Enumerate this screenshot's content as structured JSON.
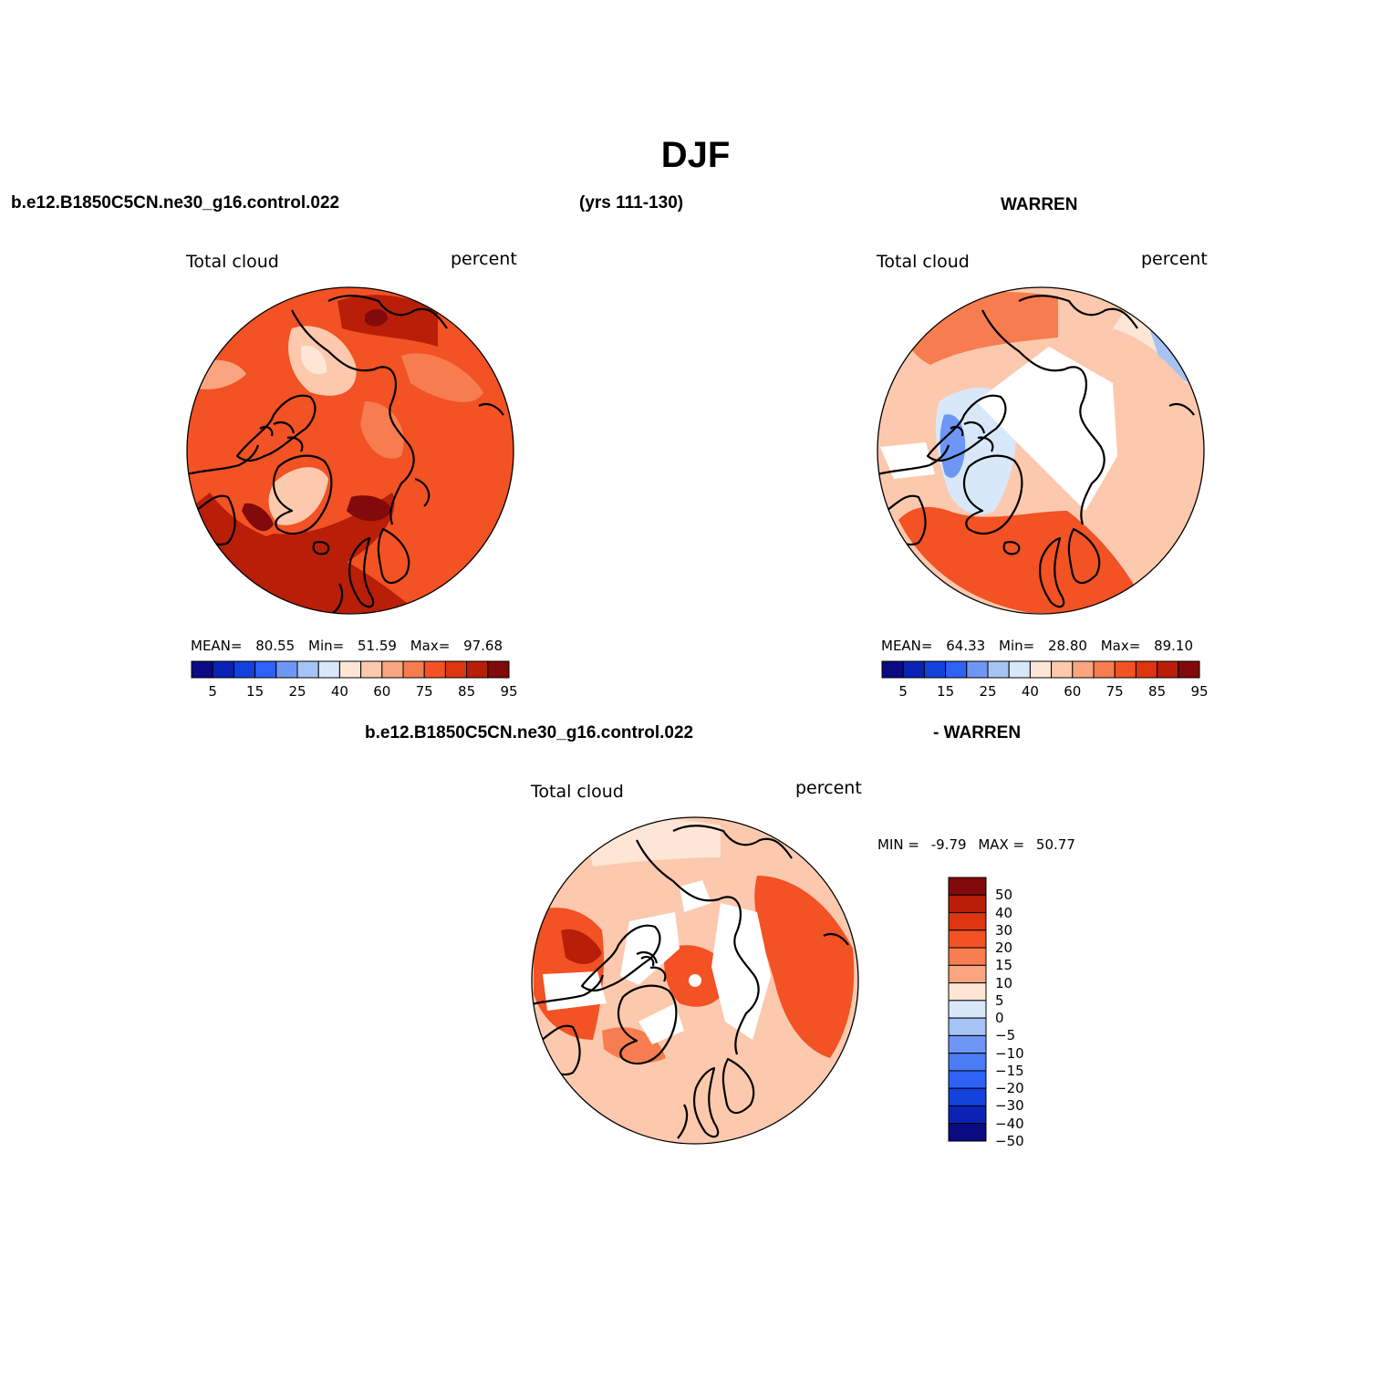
{
  "title": "DJF",
  "header": {
    "case_name": "b.e12.B1850C5CN.ne30_g16.control.022",
    "years": "(yrs 111-130)",
    "obs_name": "WARREN",
    "diff_case": "b.e12.B1850C5CN.ne30_g16.control.022",
    "diff_obs": "- WARREN"
  },
  "panels": [
    {
      "id": "model",
      "variable": "Total cloud",
      "units": "percent",
      "mean_label": "MEAN=",
      "mean": "80.55",
      "min_label": "Min=",
      "min": "51.59",
      "max_label": "Max=",
      "max": "97.68"
    },
    {
      "id": "obs",
      "variable": "Total cloud",
      "units": "percent",
      "mean_label": "MEAN=",
      "mean": "64.33",
      "min_label": "Min=",
      "min": "28.80",
      "max_label": "Max=",
      "max": "89.10"
    },
    {
      "id": "diff",
      "variable": "Total cloud",
      "units": "percent",
      "min_label": "MIN =",
      "min": "-9.79",
      "max_label": "MAX =",
      "max": "50.77"
    }
  ],
  "colorbar_abs": {
    "colors": [
      "#0a0a82",
      "#0a23b4",
      "#1440dc",
      "#2e62f5",
      "#6e97f5",
      "#a6c3f5",
      "#d8e8fa",
      "#fde6d6",
      "#fcc9ae",
      "#faa57f",
      "#f77d50",
      "#f25224",
      "#dc3510",
      "#b81e08",
      "#820a0a"
    ],
    "tick_labels": [
      "5",
      "15",
      "25",
      "40",
      "60",
      "75",
      "85",
      "95"
    ]
  },
  "colorbar_diff": {
    "colors": [
      "#820a0a",
      "#b81e08",
      "#dc3510",
      "#f25224",
      "#f77d50",
      "#faa57f",
      "#fde6d6",
      "#d8e8fa",
      "#a6c3f5",
      "#6e97f5",
      "#4b7bf5",
      "#2e62f5",
      "#1440dc",
      "#0a23b4",
      "#0a0a82"
    ],
    "tick_labels": [
      "50",
      "40",
      "30",
      "20",
      "15",
      "10",
      "5",
      "0",
      "−5",
      "−10",
      "−15",
      "−20",
      "−30",
      "−40",
      "−50"
    ]
  },
  "map_colors": {
    "land_line": "#000000",
    "missing": "#ffffff"
  }
}
